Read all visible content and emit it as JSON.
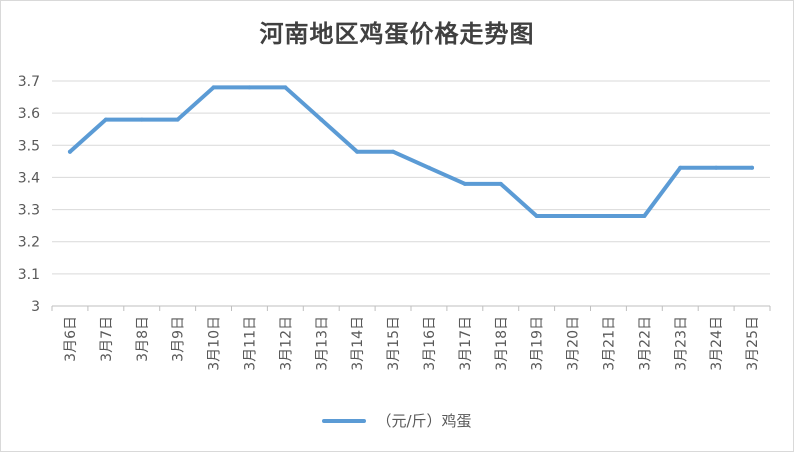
{
  "chart_data": {
    "type": "line",
    "title": "河南地区鸡蛋价格走势图",
    "categories": [
      "3月6日",
      "3月7日",
      "3月8日",
      "3月9日",
      "3月10日",
      "3月11日",
      "3月12日",
      "3月13日",
      "3月14日",
      "3月15日",
      "3月16日",
      "3月17日",
      "3月18日",
      "3月19日",
      "3月20日",
      "3月21日",
      "3月22日",
      "3月23日",
      "3月24日",
      "3月25日"
    ],
    "series": [
      {
        "name": "（元/斤）鸡蛋",
        "values": [
          3.48,
          3.58,
          3.58,
          3.58,
          3.68,
          3.68,
          3.68,
          3.58,
          3.48,
          3.48,
          3.43,
          3.38,
          3.38,
          3.28,
          3.28,
          3.28,
          3.28,
          3.43,
          3.43,
          3.43
        ]
      }
    ],
    "y_ticks": [
      "3",
      "3.1",
      "3.2",
      "3.3",
      "3.4",
      "3.5",
      "3.6",
      "3.7"
    ],
    "ylim": [
      3,
      3.7
    ],
    "grid": "horizontal",
    "legend_position": "bottom",
    "line_color": "#5b9bd5"
  }
}
